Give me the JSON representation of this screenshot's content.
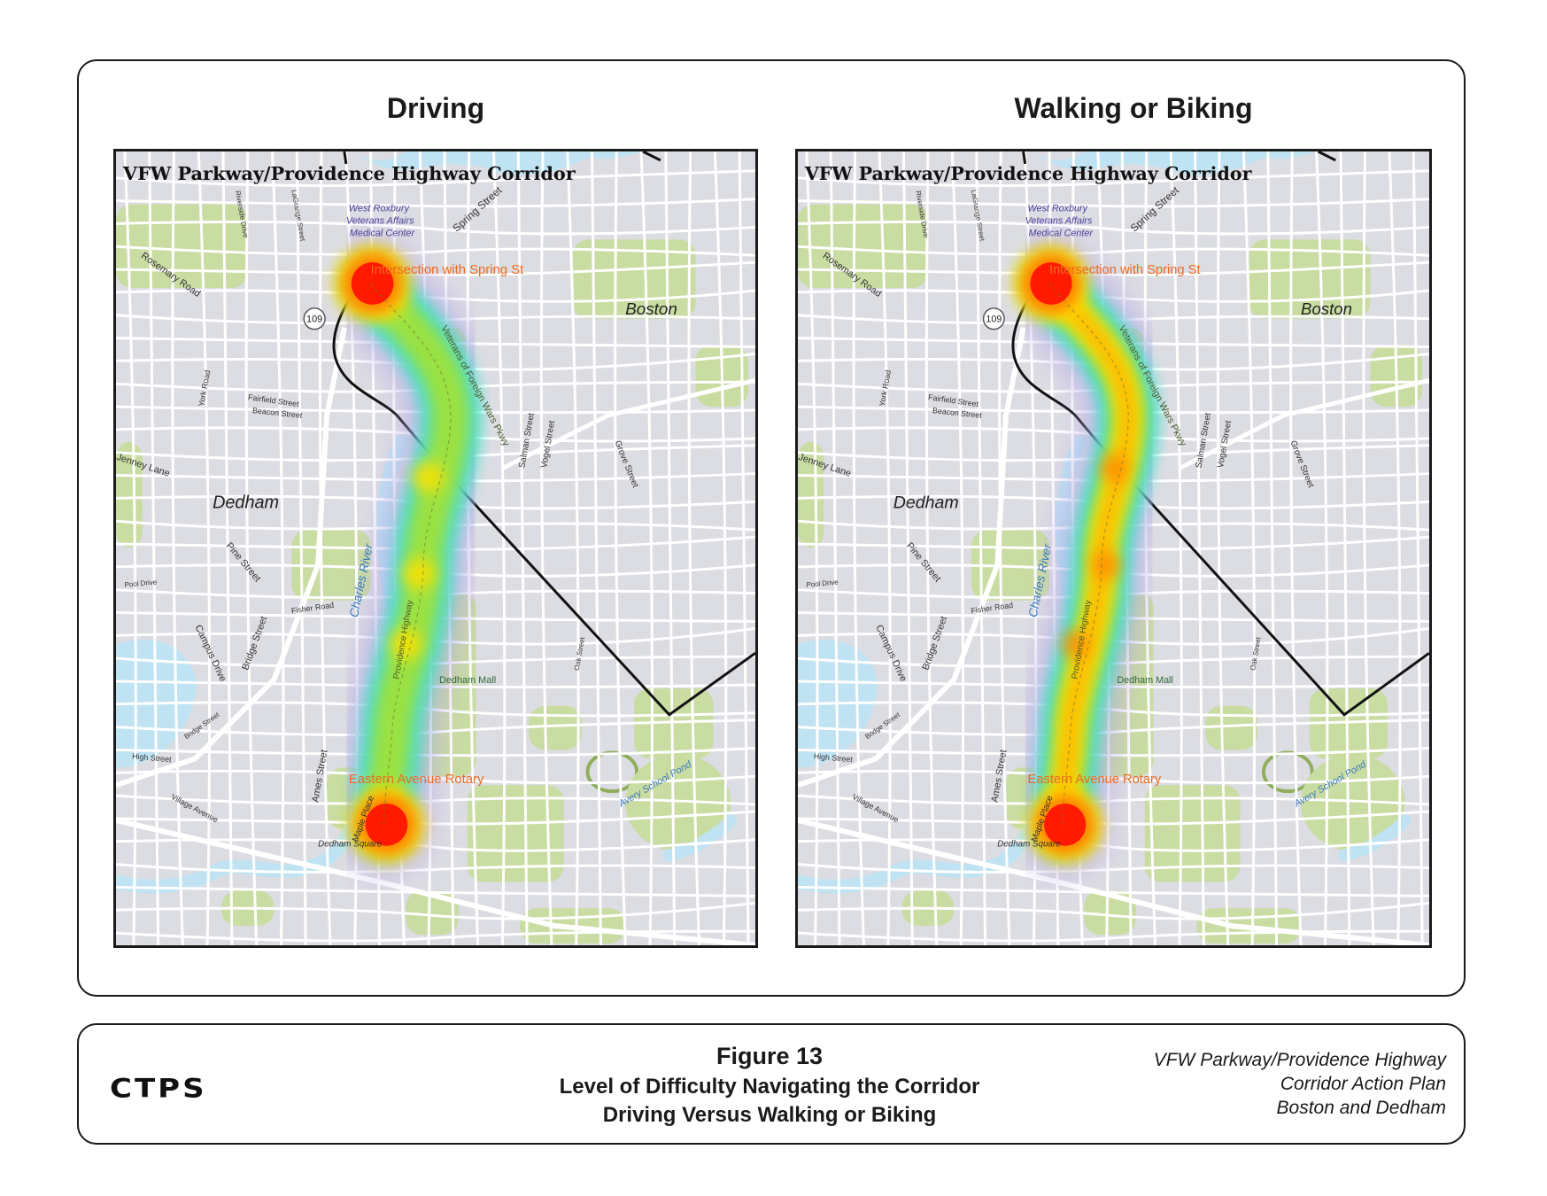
{
  "panels": [
    {
      "heading": "Driving",
      "map": {
        "title": "VFW Parkway/Providence Highway Corridor",
        "labels": {
          "va_line1": "West Roxbury",
          "va_line2": "Veterans Affairs",
          "va_line3": "Medical Center",
          "spring_street": "Spring Street",
          "intersection": "Intersection with Spring St",
          "boston": "Boston",
          "route": "109",
          "rosemary": "Rosemary Road",
          "fairfield": "Fairfield Street",
          "beacon": "Beacon Street",
          "york": "York Road",
          "jenney": "Jenney Lane",
          "dedham": "Dedham",
          "pine": "Pine Street",
          "pool": "Pool Drive",
          "campus": "Campus Drive",
          "bridge": "Bridge Street",
          "bridge_small": "Bridge Street",
          "fisher": "Fisher Road",
          "charles": "Charles River",
          "vfw": "Veterans of Foreign Wars Pkwy",
          "salman": "Salman Street",
          "vogel": "Vogel Street",
          "grove": "Grove Street",
          "providence": "Providence Highway",
          "mall": "Dedham Mall",
          "oak": "Oak Street",
          "high": "High Street",
          "ames": "Ames Street",
          "maple": "Maple Place",
          "rotary": "Eastern Avenue Rotary",
          "village": "Village Avenue",
          "avery": "Avery School Pond",
          "square": "Dedham Square",
          "riverside": "Riverside Drive",
          "lagrange": "LaGrange Street"
        },
        "heat_mode": "driving"
      }
    },
    {
      "heading": "Walking or Biking",
      "map": {
        "title": "VFW Parkway/Providence Highway Corridor",
        "labels": {
          "va_line1": "West Roxbury",
          "va_line2": "Veterans Affairs",
          "va_line3": "Medical Center",
          "spring_street": "Spring Street",
          "intersection": "Intersection with Spring St",
          "boston": "Boston",
          "route": "109",
          "rosemary": "Rosemary Road",
          "fairfield": "Fairfield Street",
          "beacon": "Beacon Street",
          "york": "York Road",
          "jenney": "Jenney Lane",
          "dedham": "Dedham",
          "pine": "Pine Street",
          "pool": "Pool Drive",
          "campus": "Campus Drive",
          "bridge": "Bridge Street",
          "bridge_small": "Bridge Street",
          "fisher": "Fisher Road",
          "charles": "Charles River",
          "vfw": "Veterans of Foreign Wars Pkwy",
          "salman": "Salman Street",
          "vogel": "Vogel Street",
          "grove": "Grove Street",
          "providence": "Providence Highway",
          "mall": "Dedham Mall",
          "oak": "Oak Street",
          "high": "High Street",
          "ames": "Ames Street",
          "maple": "Maple Place",
          "rotary": "Eastern Avenue Rotary",
          "village": "Village Avenue",
          "avery": "Avery School Pond",
          "square": "Dedham Square",
          "riverside": "Riverside Drive",
          "lagrange": "LaGrange Street"
        },
        "heat_mode": "walking"
      }
    }
  ],
  "footer": {
    "logo": "CTPS",
    "figure_number": "Figure 13",
    "title_line1": "Level of Difficulty Navigating the Corridor",
    "title_line2": "Driving Versus Walking or Biking",
    "project_line1": "VFW Parkway/Providence Highway",
    "project_line2": "Corridor Action Plan",
    "project_line3": "Boston and Dedham"
  },
  "colors": {
    "map_background": "#dcdde3",
    "park_green": "#c9dca2",
    "water": "#bfe3f2",
    "road": "#ffffff",
    "boundary": "#111111",
    "heat_high": "#ff1a00",
    "heat_mid": "#ffe100",
    "heat_low": "#38e0d0",
    "label_orange": "#f06a1e",
    "label_blue": "#3a78c0"
  }
}
